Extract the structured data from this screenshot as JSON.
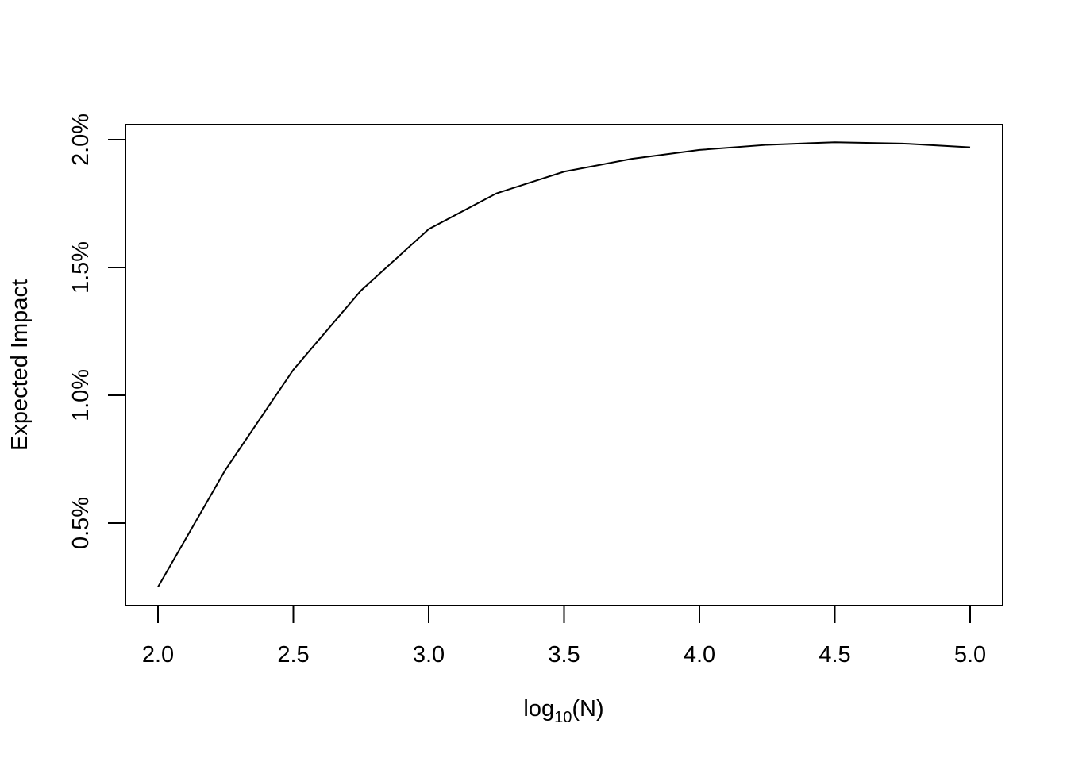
{
  "chart_data": {
    "type": "line",
    "title": "",
    "xlabel": {
      "main": "log",
      "subscript": "10",
      "suffix": "(N)"
    },
    "ylabel": "Expected Impact",
    "xlim": [
      2.0,
      5.0
    ],
    "ylim": [
      0.25,
      2.0
    ],
    "x_ticks": [
      2.0,
      2.5,
      3.0,
      3.5,
      4.0,
      4.5,
      5.0
    ],
    "x_tick_labels": [
      "2.0",
      "2.5",
      "3.0",
      "3.5",
      "4.0",
      "4.5",
      "5.0"
    ],
    "y_ticks": [
      0.5,
      1.0,
      1.5,
      2.0
    ],
    "y_tick_labels": [
      "0.5%",
      "1.0%",
      "1.5%",
      "2.0%"
    ],
    "y_unit": "percent",
    "grid": false,
    "legend": "none",
    "series": [
      {
        "color": "#000000",
        "x": [
          2.0,
          2.25,
          2.5,
          2.75,
          3.0,
          3.25,
          3.5,
          3.75,
          4.0,
          4.25,
          4.5,
          4.75,
          5.0
        ],
        "y": [
          0.25,
          0.71,
          1.1,
          1.41,
          1.65,
          1.79,
          1.875,
          1.925,
          1.96,
          1.98,
          1.99,
          1.985,
          1.97
        ]
      }
    ]
  }
}
